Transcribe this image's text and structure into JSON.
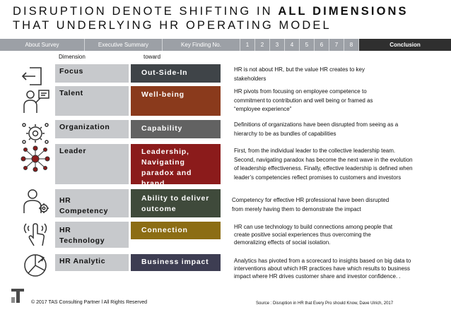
{
  "title": {
    "line1_prefix": "DISRUPTION DENOTE SHIFTING IN ",
    "line1_bold": "ALL DIMENSIONS",
    "line2": "THAT UNDERLYING HR OPERATING MODEL"
  },
  "nav": {
    "about": "About Survey",
    "executive": "Executive Summary",
    "key_finding": "Key Finding No.",
    "pages": [
      "1",
      "2",
      "3",
      "4",
      "5",
      "6",
      "7",
      "8"
    ],
    "conclusion": "Conclusion"
  },
  "headers": {
    "dimension": "Dimension",
    "toward": "toward"
  },
  "rows": [
    {
      "icon": "exit-door-icon",
      "dimension": "Focus",
      "toward": "Out-Side-In",
      "toward_color": "#3f4448",
      "description": [
        "HR is not about HR, but the value HR creates to key",
        "stakeholders"
      ]
    },
    {
      "icon": "person-presenting-icon",
      "dimension": "Talent",
      "toward": "Well-being",
      "toward_color": "#8a3a1c",
      "description": [
        "HR pivots from focusing on employee competence to",
        "commitment to contribution and well being or framed as",
        "“employee experience”"
      ]
    },
    {
      "icon": "gears-icon",
      "dimension": "Organization",
      "toward": "Capability",
      "toward_color": "#626262",
      "description": [
        "Definitions of organizations have been disrupted from seeing as a",
        "hierarchy to be as bundles of capabilities"
      ]
    },
    {
      "icon": "network-people-icon",
      "dimension": "Leader",
      "toward": "Leadership, Navigating paradox and brand",
      "toward_color": "#8b1b1b",
      "description": [
        "First, from the individual leader to the collective leadership team.",
        "Second, navigating paradox has become the next wave in the evolution",
        "of leadership effectiveness. Finally, effective leadership is defined when",
        "leader’s competencies reflect promises to customers and investors"
      ]
    },
    {
      "icon": "person-gear-icon",
      "dimension": "HR Competency",
      "toward": "Ability to deliver outcome",
      "toward_color": "#3f4a3b",
      "description": [
        "Competency for effective HR professional have been disrupted",
        "from merely having them to demonstrate the impact"
      ]
    },
    {
      "icon": "touch-hand-icon",
      "dimension": "HR Technology",
      "toward": "Connection",
      "toward_color": "#8c6d14",
      "description": [
        "HR can use technology to build connections among people that",
        "create positive social experiences thus overcoming the",
        "demoralizing effects of social isolation."
      ]
    },
    {
      "icon": "pie-chart-icon",
      "dimension": "HR Analytic",
      "toward": "Business impact",
      "toward_color": "#3d3d52",
      "description": [
        "Analytics has pivoted from a scorecard to insights based on big data to",
        "interventions about which HR practices have which results to business",
        "impact where HR drives customer share and investor confidence. ."
      ]
    }
  ],
  "footer": {
    "copyright": "© 2017 TAS Consulting Partner  l  All Rights Reserved",
    "source": "Source : Disruption in HR that Every Pro should Know, Dave Ulrich, 2017"
  },
  "colors": {
    "navbar": "#9ca0a6",
    "nav_active": "#2f2f2f",
    "dimension_box": "#c7c9cc"
  }
}
